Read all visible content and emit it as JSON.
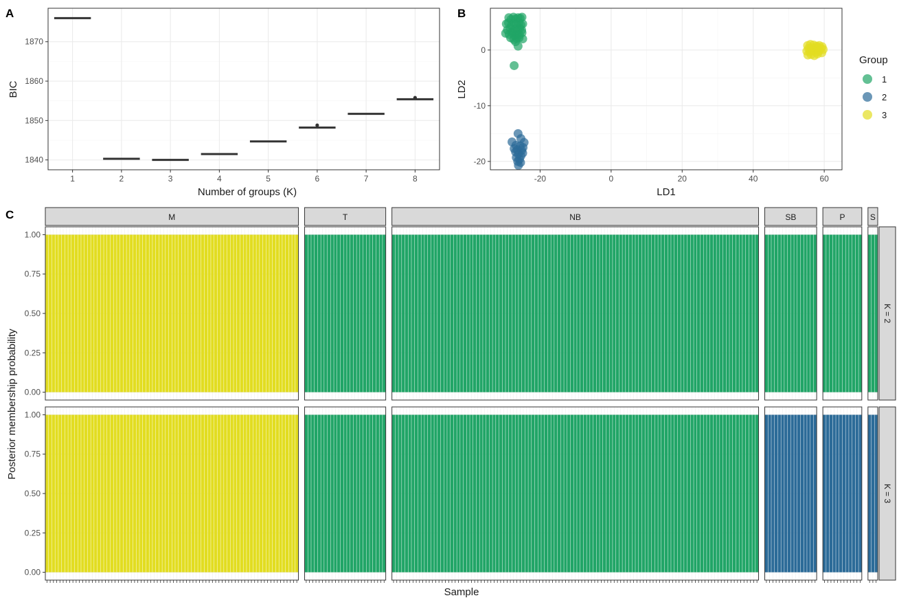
{
  "panel_tags": {
    "a": "A",
    "b": "B",
    "c": "C"
  },
  "colors": {
    "group1": "#21a567",
    "group2": "#2c6b98",
    "group3": "#e2dd21"
  },
  "chart_data": [
    {
      "type": "box",
      "xlabel": "Number of groups (K)",
      "ylabel": "BIC",
      "categories": [
        "1",
        "2",
        "3",
        "4",
        "5",
        "6",
        "7",
        "8"
      ],
      "values": [
        1876.0,
        1840.3,
        1840.0,
        1841.5,
        1844.7,
        1848.2,
        1851.7,
        1855.4
      ],
      "outliers": [
        {
          "x": "6",
          "y": 1848.8
        },
        {
          "x": "8",
          "y": 1855.8
        }
      ],
      "ylim": [
        1837.5,
        1878.5
      ],
      "yticks": [
        1840,
        1850,
        1860,
        1870
      ],
      "grid": true
    },
    {
      "type": "scatter",
      "xlabel": "LD1",
      "ylabel": "LD2",
      "xlim": [
        -34,
        65
      ],
      "ylim": [
        -21.5,
        7.5
      ],
      "xticks": [
        -20,
        0,
        20,
        40,
        60
      ],
      "yticks": [
        0,
        -10,
        -20
      ],
      "grid": true,
      "legend": {
        "title": "Group",
        "position": "right",
        "entries": [
          "1",
          "2",
          "3"
        ]
      },
      "series": [
        {
          "name": "1",
          "points": [
            [
              -28.8,
              5.8
            ],
            [
              -28.2,
              5.5
            ],
            [
              -27.5,
              5.9
            ],
            [
              -26.9,
              5.6
            ],
            [
              -26.2,
              5.8
            ],
            [
              -25.6,
              5.7
            ],
            [
              -25.1,
              5.9
            ],
            [
              -29.5,
              4.7
            ],
            [
              -28.9,
              4.9
            ],
            [
              -28.1,
              4.4
            ],
            [
              -27.4,
              4.8
            ],
            [
              -26.7,
              4.6
            ],
            [
              -26.0,
              4.9
            ],
            [
              -25.4,
              4.5
            ],
            [
              -24.9,
              4.7
            ],
            [
              -29.2,
              3.6
            ],
            [
              -28.4,
              3.9
            ],
            [
              -27.7,
              3.4
            ],
            [
              -27.0,
              3.8
            ],
            [
              -26.3,
              3.5
            ],
            [
              -25.7,
              3.9
            ],
            [
              -25.2,
              3.6
            ],
            [
              -29.7,
              3.0
            ],
            [
              -28.7,
              2.8
            ],
            [
              -27.9,
              3.1
            ],
            [
              -27.2,
              2.6
            ],
            [
              -26.5,
              2.9
            ],
            [
              -25.8,
              2.7
            ],
            [
              -25.1,
              3.1
            ],
            [
              -28.3,
              2.2
            ],
            [
              -27.4,
              1.9
            ],
            [
              -26.6,
              2.1
            ],
            [
              -25.9,
              2.2
            ],
            [
              -24.9,
              2.0
            ],
            [
              -26.9,
              1.5
            ],
            [
              -26.2,
              0.7
            ],
            [
              -27.3,
              -2.8
            ]
          ]
        },
        {
          "name": "2",
          "points": [
            [
              -26.2,
              -15.0
            ],
            [
              -25.4,
              -15.9
            ],
            [
              -27.9,
              -16.5
            ],
            [
              -24.5,
              -16.6
            ],
            [
              -26.8,
              -17.1
            ],
            [
              -25.6,
              -17.2
            ],
            [
              -24.8,
              -17.5
            ],
            [
              -27.3,
              -17.7
            ],
            [
              -26.4,
              -17.9
            ],
            [
              -25.2,
              -18.0
            ],
            [
              -26.9,
              -18.3
            ],
            [
              -24.9,
              -18.5
            ],
            [
              -26.1,
              -18.7
            ],
            [
              -25.4,
              -19.0
            ],
            [
              -26.7,
              -19.3
            ],
            [
              -25.8,
              -19.6
            ],
            [
              -26.3,
              -20.0
            ],
            [
              -25.5,
              -20.2
            ],
            [
              -26.1,
              -20.7
            ]
          ]
        },
        {
          "name": "3",
          "points": [
            [
              55.3,
              0.8
            ],
            [
              56.1,
              1.0
            ],
            [
              57.0,
              0.9
            ],
            [
              57.8,
              0.7
            ],
            [
              58.6,
              0.8
            ],
            [
              59.4,
              0.6
            ],
            [
              55.6,
              0.3
            ],
            [
              56.4,
              0.4
            ],
            [
              57.3,
              0.2
            ],
            [
              58.1,
              0.5
            ],
            [
              59.0,
              0.3
            ],
            [
              59.7,
              0.1
            ],
            [
              55.1,
              -0.2
            ],
            [
              56.0,
              -0.3
            ],
            [
              56.9,
              -0.1
            ],
            [
              57.7,
              -0.4
            ],
            [
              58.5,
              -0.2
            ],
            [
              59.3,
              -0.5
            ],
            [
              55.4,
              -0.9
            ],
            [
              56.3,
              -0.8
            ],
            [
              57.2,
              -1.0
            ],
            [
              58.1,
              -0.7
            ]
          ]
        }
      ]
    },
    {
      "type": "bar",
      "xlabel": "Sample",
      "ylabel": "Posterior membership probability",
      "ylim": [
        -0.05,
        1.05
      ],
      "yticks": [
        "0.00",
        "0.25",
        "0.50",
        "0.75",
        "1.00"
      ],
      "facet_columns": [
        {
          "label": "M",
          "n": 78
        },
        {
          "label": "T",
          "n": 25
        },
        {
          "label": "NB",
          "n": 113
        },
        {
          "label": "SB",
          "n": 16
        },
        {
          "label": "P",
          "n": 12
        },
        {
          "label": "S",
          "n": 3
        }
      ],
      "facet_rows": [
        {
          "label": "K = 2",
          "fill_groups": [
            "3",
            "1",
            "1",
            "1",
            "1",
            "1"
          ]
        },
        {
          "label": "K = 3",
          "fill_groups": [
            "3",
            "1",
            "1",
            "2",
            "2",
            "2"
          ]
        }
      ],
      "values": 1.0
    }
  ]
}
